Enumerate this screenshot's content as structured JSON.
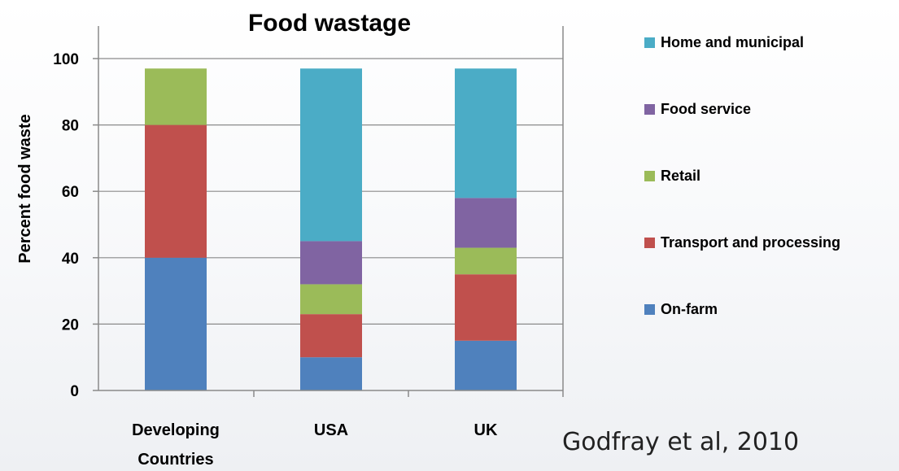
{
  "chart_data": {
    "type": "bar",
    "stacked": true,
    "title": "Food wastage",
    "xlabel": "",
    "ylabel": "Percent food waste",
    "ylim": [
      0,
      100
    ],
    "yticks": [
      0,
      20,
      40,
      60,
      80,
      100
    ],
    "categories": [
      {
        "lines": [
          "Developing",
          "Countries"
        ]
      },
      {
        "lines": [
          "USA"
        ]
      },
      {
        "lines": [
          "UK"
        ]
      }
    ],
    "series": [
      {
        "name": "On-farm",
        "color": "#4F81BD",
        "values": [
          40,
          10,
          15
        ]
      },
      {
        "name": "Transport and processing",
        "color": "#C0504D",
        "values": [
          40,
          13,
          20
        ]
      },
      {
        "name": "Retail",
        "color": "#9BBB59",
        "values": [
          17,
          9,
          8
        ]
      },
      {
        "name": "Food service",
        "color": "#8064A2",
        "values": [
          0,
          13,
          15
        ]
      },
      {
        "name": "Home and municipal",
        "color": "#4BACC6",
        "values": [
          0,
          52,
          39
        ]
      }
    ],
    "legend_position": "right",
    "grid": true
  },
  "citation": "Godfray et al, 2010"
}
